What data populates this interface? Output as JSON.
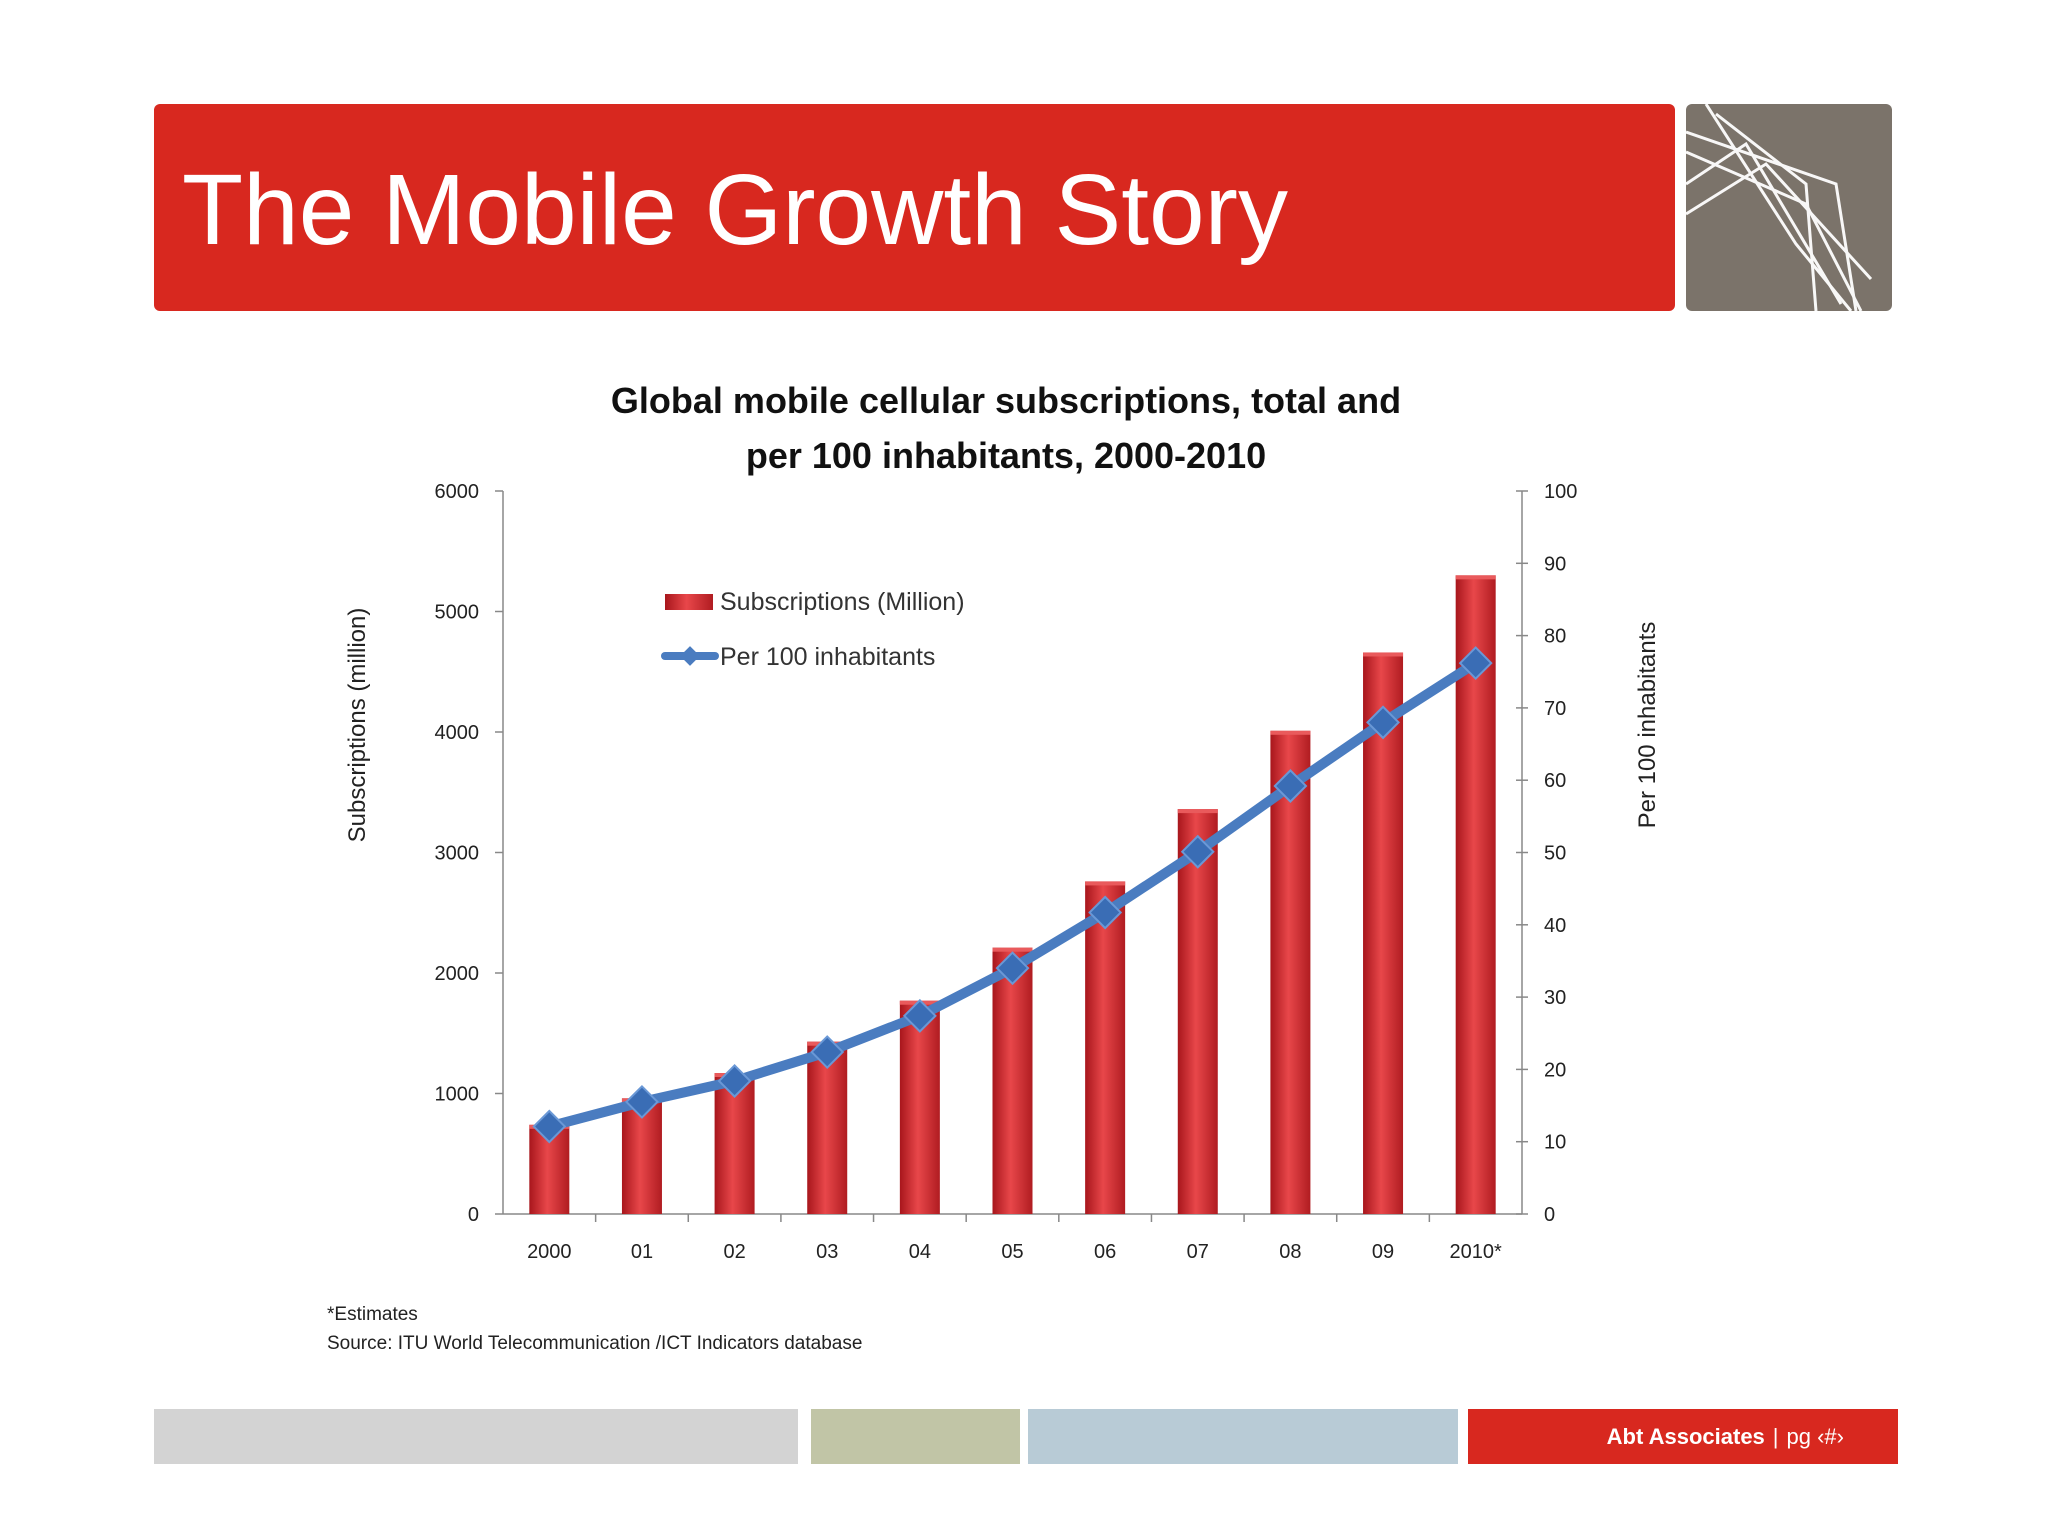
{
  "slide": {
    "title": "The Mobile Growth Story"
  },
  "footer": {
    "brand": "Abt Associates",
    "separator": "|",
    "page_label": "pg ‹#›"
  },
  "colors": {
    "title_bar": "#d8281f",
    "logo_box": "#7b736a",
    "bar_fill": "#d9282c",
    "line": "#4a7cc0",
    "footer_gray": "#d3d3d3",
    "footer_olive": "#c1c5a6",
    "footer_blue": "#b8cbd6",
    "footer_red": "#d8281f"
  },
  "chart_data": {
    "type": "bar",
    "title_lines": [
      "Global mobile cellular subscriptions, total and",
      "per 100 inhabitants, 2000-2010"
    ],
    "categories": [
      "2000",
      "01",
      "02",
      "03",
      "04",
      "05",
      "06",
      "07",
      "08",
      "09",
      "2010*"
    ],
    "series": [
      {
        "name": "Subscriptions (Million)",
        "type": "bar",
        "axis": "left",
        "values": [
          740,
          960,
          1170,
          1430,
          1770,
          2210,
          2760,
          3360,
          4010,
          4660,
          5300
        ]
      },
      {
        "name": "Per 100 inhabitants",
        "type": "line",
        "axis": "right",
        "values": [
          12.1,
          15.5,
          18.4,
          22.4,
          27.4,
          34.0,
          41.7,
          50.1,
          59.2,
          68.0,
          76.2
        ]
      }
    ],
    "y_left": {
      "label": "Subscriptions (million)",
      "ylim": [
        0,
        6000
      ],
      "ticks": [
        "0",
        "1000",
        "2000",
        "3000",
        "4000",
        "5000",
        "6000"
      ]
    },
    "y_right": {
      "label": "Per 100 inhabitants",
      "ylim": [
        0,
        100
      ],
      "ticks": [
        "0",
        "10",
        "20",
        "30",
        "40",
        "50",
        "60",
        "70",
        "80",
        "90",
        "100"
      ]
    },
    "legend_position": "top-left",
    "grid": false,
    "notes": [
      "*Estimates",
      "Source:  ITU World Telecommunication /ICT Indicators database"
    ]
  }
}
